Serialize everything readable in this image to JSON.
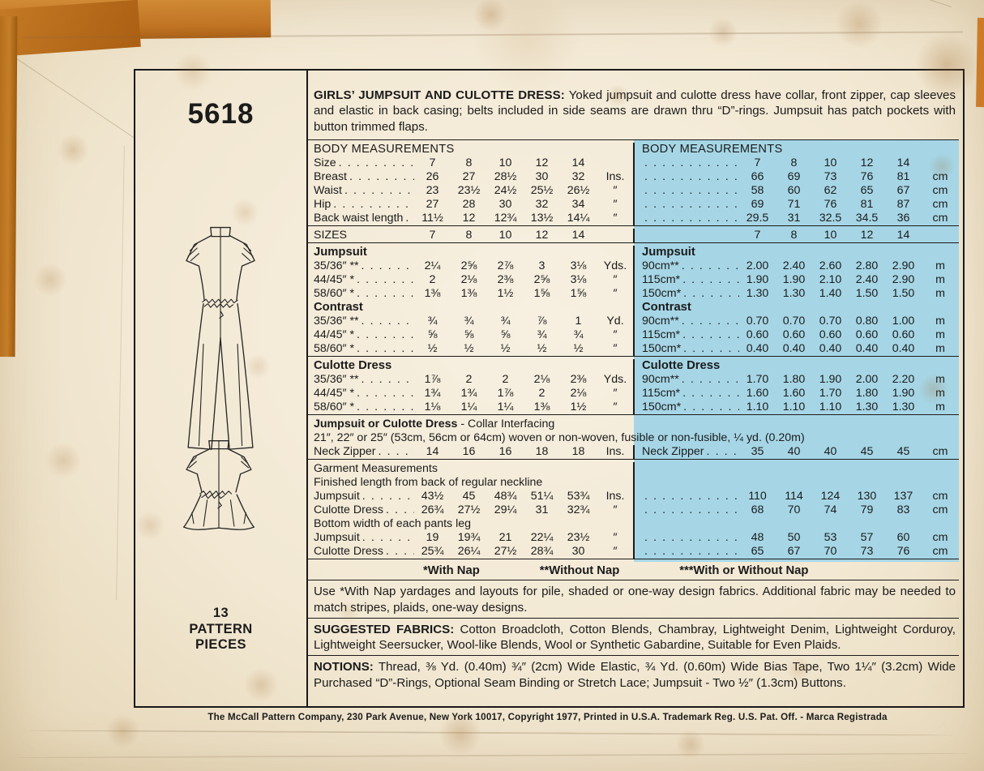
{
  "page": {
    "pattern_number": "5618",
    "pieces": [
      "13",
      "PATTERN",
      "PIECES"
    ],
    "footer": "The McCall Pattern Company, 230 Park Avenue, New York 10017, Copyright 1977, Printed in U.S.A. Trademark Reg. U.S. Pat. Off. - Marca Registrada"
  },
  "header": {
    "title": "GIRLS’ JUMPSUIT AND CULOTTE DRESS:",
    "description": " Yoked jumpsuit and culotte dress have collar, front zipper, cap sleeves and elastic in back casing; belts included in side seams are drawn thru “D”-rings. Jumpsuit has patch pockets with button trimmed flaps."
  },
  "colors": {
    "highlight_blue": "#a6d6e6",
    "paper": "#f2e8d3",
    "tape_orange": "#c07424",
    "ink": "#1b1b1b"
  },
  "table": {
    "rows": [
      {
        "k": "rule"
      },
      {
        "k": "head",
        "l": "BODY MEASUREMENTS",
        "r": "BODY MEASUREMENTS"
      },
      {
        "k": "d",
        "l": "Size",
        "lv": [
          "7",
          "8",
          "10",
          "12",
          "14",
          ""
        ],
        "r": "",
        "rv": [
          "7",
          "8",
          "10",
          "12",
          "14",
          ""
        ]
      },
      {
        "k": "d",
        "l": "Breast",
        "lv": [
          "26",
          "27",
          "28½",
          "30",
          "32",
          "Ins."
        ],
        "r": "",
        "rv": [
          "66",
          "69",
          "73",
          "76",
          "81",
          "cm"
        ]
      },
      {
        "k": "d",
        "l": "Waist",
        "lv": [
          "23",
          "23½",
          "24½",
          "25½",
          "26½",
          "″"
        ],
        "r": "",
        "rv": [
          "58",
          "60",
          "62",
          "65",
          "67",
          "cm"
        ]
      },
      {
        "k": "d",
        "l": "Hip",
        "lv": [
          "27",
          "28",
          "30",
          "32",
          "34",
          "″"
        ],
        "r": "",
        "rv": [
          "69",
          "71",
          "76",
          "81",
          "87",
          "cm"
        ]
      },
      {
        "k": "d",
        "l": "Back waist length",
        "lv": [
          "11½",
          "12",
          "12¾",
          "13½",
          "14¼",
          "″"
        ],
        "r": "",
        "rv": [
          "29.5",
          "31",
          "32.5",
          "34.5",
          "36",
          "cm"
        ]
      },
      {
        "k": "rule"
      },
      {
        "k": "d",
        "l": "SIZES",
        "dots": false,
        "lv": [
          "7",
          "8",
          "10",
          "12",
          "14",
          ""
        ],
        "r": "",
        "rv": [
          "7",
          "8",
          "10",
          "12",
          "14",
          ""
        ]
      },
      {
        "k": "rule"
      },
      {
        "k": "bold",
        "l": "Jumpsuit",
        "r": "Jumpsuit"
      },
      {
        "k": "d",
        "l": "35/36″ **",
        "lv": [
          "2¼",
          "2⅝",
          "2⅞",
          "3",
          "3⅛",
          "Yds."
        ],
        "r": "90cm**",
        "rv": [
          "2.00",
          "2.40",
          "2.60",
          "2.80",
          "2.90",
          "m"
        ]
      },
      {
        "k": "d",
        "l": "44/45″ *",
        "lv": [
          "2",
          "2⅛",
          "2⅜",
          "2⅝",
          "3⅛",
          "″"
        ],
        "r": "115cm*",
        "rv": [
          "1.90",
          "1.90",
          "2.10",
          "2.40",
          "2.90",
          "m"
        ]
      },
      {
        "k": "d",
        "l": "58/60″ *",
        "lv": [
          "1⅜",
          "1⅜",
          "1½",
          "1⅝",
          "1⅝",
          "″"
        ],
        "r": "150cm*",
        "rv": [
          "1.30",
          "1.30",
          "1.40",
          "1.50",
          "1.50",
          "m"
        ]
      },
      {
        "k": "bold",
        "l": "Contrast",
        "r": "Contrast"
      },
      {
        "k": "d",
        "l": "35/36″ **",
        "lv": [
          "¾",
          "¾",
          "¾",
          "⅞",
          "1",
          "Yd."
        ],
        "r": "90cm**",
        "rv": [
          "0.70",
          "0.70",
          "0.70",
          "0.80",
          "1.00",
          "m"
        ]
      },
      {
        "k": "d",
        "l": "44/45″ *",
        "lv": [
          "⅝",
          "⅝",
          "⅝",
          "¾",
          "¾",
          "″"
        ],
        "r": "115cm*",
        "rv": [
          "0.60",
          "0.60",
          "0.60",
          "0.60",
          "0.60",
          "m"
        ]
      },
      {
        "k": "d",
        "l": "58/60″ *",
        "lv": [
          "½",
          "½",
          "½",
          "½",
          "½",
          "″"
        ],
        "r": "150cm*",
        "rv": [
          "0.40",
          "0.40",
          "0.40",
          "0.40",
          "0.40",
          "m"
        ]
      },
      {
        "k": "rule"
      },
      {
        "k": "bold",
        "l": "Culotte Dress",
        "r": "Culotte Dress"
      },
      {
        "k": "d",
        "l": "35/36″ **",
        "lv": [
          "1⅞",
          "2",
          "2",
          "2⅛",
          "2⅜",
          "Yds."
        ],
        "r": "90cm**",
        "rv": [
          "1.70",
          "1.80",
          "1.90",
          "2.00",
          "2.20",
          "m"
        ]
      },
      {
        "k": "d",
        "l": "44/45″ *",
        "lv": [
          "1¾",
          "1¾",
          "1⅞",
          "2",
          "2⅛",
          "″"
        ],
        "r": "115cm*",
        "rv": [
          "1.60",
          "1.60",
          "1.70",
          "1.80",
          "1.90",
          "m"
        ]
      },
      {
        "k": "d",
        "l": "58/60″ *",
        "lv": [
          "1⅛",
          "1¼",
          "1¼",
          "1⅜",
          "1½",
          "″"
        ],
        "r": "150cm*",
        "rv": [
          "1.10",
          "1.10",
          "1.10",
          "1.30",
          "1.30",
          "m"
        ]
      },
      {
        "k": "rule"
      },
      {
        "k": "full",
        "b": "Jumpsuit or Culotte Dress",
        "t": " - Collar Interfacing"
      },
      {
        "k": "full",
        "t": "21″, 22″ or 25″ (53cm, 56cm or 64cm) woven or non-woven, fusible or non-fusible, ¼ yd. (0.20m)"
      },
      {
        "k": "d",
        "l": "Neck Zipper",
        "lv": [
          "14",
          "16",
          "16",
          "18",
          "18",
          "Ins."
        ],
        "r": "Neck Zipper",
        "rv": [
          "35",
          "40",
          "40",
          "45",
          "45",
          "cm"
        ]
      },
      {
        "k": "rule"
      },
      {
        "k": "textl",
        "l": "Garment Measurements"
      },
      {
        "k": "textl",
        "l": "Finished length from back of regular neckline"
      },
      {
        "k": "d",
        "l": "Jumpsuit",
        "lv": [
          "43½",
          "45",
          "48¾",
          "51¼",
          "53¾",
          "Ins."
        ],
        "r": "",
        "rv": [
          "110",
          "114",
          "124",
          "130",
          "137",
          "cm"
        ]
      },
      {
        "k": "d",
        "l": "Culotte Dress",
        "lv": [
          "26¾",
          "27½",
          "29¼",
          "31",
          "32¾",
          "″"
        ],
        "r": "",
        "rv": [
          "68",
          "70",
          "74",
          "79",
          "83",
          "cm"
        ]
      },
      {
        "k": "textl",
        "l": "Bottom width of each pants leg"
      },
      {
        "k": "d",
        "l": "Jumpsuit",
        "lv": [
          "19",
          "19¾",
          "21",
          "22¼",
          "23½",
          "″"
        ],
        "r": "",
        "rv": [
          "48",
          "50",
          "53",
          "57",
          "60",
          "cm"
        ]
      },
      {
        "k": "d",
        "l": "Culotte Dress",
        "lv": [
          "25¾",
          "26¼",
          "27½",
          "28¾",
          "30",
          "″"
        ],
        "r": "",
        "rv": [
          "65",
          "67",
          "70",
          "73",
          "76",
          "cm"
        ]
      },
      {
        "k": "rule"
      }
    ]
  },
  "notes": {
    "nap_key": [
      "*With Nap",
      "**Without Nap",
      "***With or Without Nap"
    ],
    "nap_note": "Use *With Nap yardages and layouts for pile, shaded or one-way design fabrics. Additional fabric may be needed to match stripes, plaids, one-way designs.",
    "fabrics_label": "SUGGESTED FABRICS:",
    "fabrics": " Cotton Broadcloth, Cotton Blends, Chambray, Lightweight Denim, Lightweight Corduroy, Lightweight Seersucker, Wool-like Blends, Wool or Synthetic Gabardine, Suitable for Even Plaids.",
    "notions_label": "NOTIONS:",
    "notions": " Thread, ⅜ Yd. (0.40m) ¾″ (2cm) Wide Elastic, ¾ Yd. (0.60m) Wide Bias Tape, Two 1¼″ (3.2cm) Wide Purchased “D”-Rings, Optional Seam Binding or Stretch Lace; Jumpsuit - Two ½″ (1.3cm) Buttons."
  }
}
